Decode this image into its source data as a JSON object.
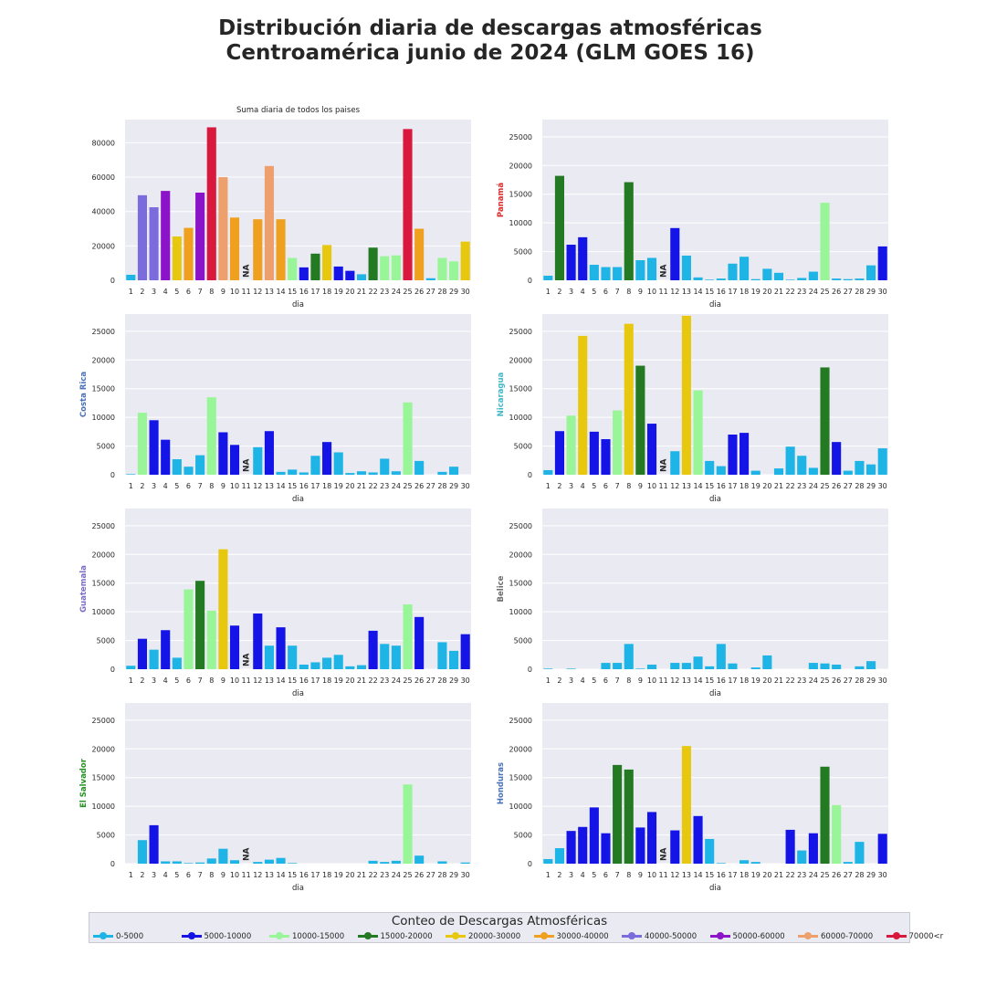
{
  "title_lines": [
    "Distribución diaria de descargas atmosféricas",
    "Centroamérica junio de 2024 (GLM GOES 16)"
  ],
  "legend": {
    "title": "Conteo de Descargas Atmosféricas",
    "items": [
      {
        "label": "0-5000",
        "color": "#1fb4e6"
      },
      {
        "label": "5000-10000",
        "color": "#1414e6"
      },
      {
        "label": "10000-15000",
        "color": "#98f598"
      },
      {
        "label": "15000-20000",
        "color": "#237a23"
      },
      {
        "label": "20000-30000",
        "color": "#e8c80f"
      },
      {
        "label": "30000-40000",
        "color": "#eea01e"
      },
      {
        "label": "40000-50000",
        "color": "#7b6cde"
      },
      {
        "label": "50000-60000",
        "color": "#8c14c8"
      },
      {
        "label": "60000-70000",
        "color": "#eea06c"
      },
      {
        "label": "70000<r",
        "color": "#d8183c"
      }
    ]
  },
  "chart_data": [
    {
      "type": "bar",
      "title": "Suma diaria de todos los paises",
      "ylabel": "",
      "ylabel_color": "#262626",
      "xlabel": "dia",
      "categories": [
        "1",
        "2",
        "3",
        "4",
        "5",
        "6",
        "7",
        "8",
        "9",
        "10",
        "11",
        "12",
        "13",
        "14",
        "15",
        "16",
        "17",
        "18",
        "19",
        "20",
        "21",
        "22",
        "23",
        "24",
        "25",
        "26",
        "27",
        "28",
        "29",
        "30"
      ],
      "values": [
        3200,
        49500,
        42500,
        52000,
        25500,
        30500,
        51000,
        89000,
        60000,
        36500,
        null,
        35500,
        66500,
        35500,
        13000,
        7500,
        15500,
        20500,
        8000,
        5500,
        3500,
        19000,
        14000,
        14500,
        88000,
        30000,
        1200,
        13000,
        11000,
        22500
      ],
      "na_label": "NA",
      "ylim": [
        0,
        93500
      ],
      "yticks": [
        0,
        20000,
        40000,
        60000,
        80000
      ]
    },
    {
      "type": "bar",
      "title": "",
      "ylabel": "Panamá",
      "ylabel_color": "#e02828",
      "xlabel": "dia",
      "categories": [
        "1",
        "2",
        "3",
        "4",
        "5",
        "6",
        "7",
        "8",
        "9",
        "10",
        "11",
        "12",
        "13",
        "14",
        "15",
        "16",
        "17",
        "18",
        "19",
        "20",
        "21",
        "22",
        "23",
        "24",
        "25",
        "26",
        "27",
        "28",
        "29",
        "30"
      ],
      "values": [
        800,
        18200,
        6200,
        7500,
        2700,
        2300,
        2300,
        17100,
        3500,
        3900,
        null,
        9100,
        4300,
        500,
        100,
        300,
        2900,
        4100,
        200,
        2000,
        1300,
        100,
        400,
        1500,
        13500,
        300,
        200,
        300,
        2600,
        5900
      ],
      "na_label": "NA",
      "ylim": [
        0,
        28000
      ],
      "yticks": [
        0,
        5000,
        10000,
        15000,
        20000,
        25000
      ]
    },
    {
      "type": "bar",
      "title": "",
      "ylabel": "Costa Rica",
      "ylabel_color": "#4a70b8",
      "xlabel": "dia",
      "categories": [
        "1",
        "2",
        "3",
        "4",
        "5",
        "6",
        "7",
        "8",
        "9",
        "10",
        "11",
        "12",
        "13",
        "14",
        "15",
        "16",
        "17",
        "18",
        "19",
        "20",
        "21",
        "22",
        "23",
        "24",
        "25",
        "26",
        "27",
        "28",
        "29",
        "30"
      ],
      "values": [
        100,
        10800,
        9500,
        6100,
        2700,
        1400,
        3400,
        13500,
        7400,
        5200,
        null,
        4800,
        7600,
        500,
        900,
        400,
        3300,
        5700,
        3900,
        300,
        600,
        400,
        2800,
        600,
        12600,
        2400,
        0,
        500,
        1400,
        0
      ],
      "na_label": "NA",
      "ylim": [
        0,
        28000
      ],
      "yticks": [
        0,
        5000,
        10000,
        15000,
        20000,
        25000
      ]
    },
    {
      "type": "bar",
      "title": "",
      "ylabel": "Nicaragua",
      "ylabel_color": "#3fb8c8",
      "xlabel": "dia",
      "categories": [
        "1",
        "2",
        "3",
        "4",
        "5",
        "6",
        "7",
        "8",
        "9",
        "10",
        "11",
        "12",
        "13",
        "14",
        "15",
        "16",
        "17",
        "18",
        "19",
        "20",
        "21",
        "22",
        "23",
        "24",
        "25",
        "26",
        "27",
        "28",
        "29",
        "30"
      ],
      "values": [
        800,
        7600,
        10300,
        24200,
        7500,
        6200,
        11200,
        26300,
        19000,
        8900,
        null,
        4100,
        27700,
        14700,
        2400,
        1500,
        7000,
        7300,
        700,
        0,
        1100,
        4900,
        3300,
        1200,
        18700,
        5700,
        700,
        2400,
        1800,
        4600
      ],
      "na_label": "NA",
      "ylim": [
        0,
        28000
      ],
      "yticks": [
        0,
        5000,
        10000,
        15000,
        20000,
        25000
      ]
    },
    {
      "type": "bar",
      "title": "",
      "ylabel": "Guatemala",
      "ylabel_color": "#7e6cc9",
      "xlabel": "dia",
      "categories": [
        "1",
        "2",
        "3",
        "4",
        "5",
        "6",
        "7",
        "8",
        "9",
        "10",
        "11",
        "12",
        "13",
        "14",
        "15",
        "16",
        "17",
        "18",
        "19",
        "20",
        "21",
        "22",
        "23",
        "24",
        "25",
        "26",
        "27",
        "28",
        "29",
        "30"
      ],
      "values": [
        600,
        5300,
        3400,
        6800,
        2000,
        13900,
        15400,
        10200,
        20900,
        7600,
        null,
        9700,
        4100,
        7300,
        4100,
        800,
        1200,
        2000,
        2500,
        500,
        700,
        6700,
        4400,
        4100,
        11300,
        9100,
        0,
        4700,
        3200,
        6100
      ],
      "na_label": "NA",
      "ylim": [
        0,
        28000
      ],
      "yticks": [
        0,
        5000,
        10000,
        15000,
        20000,
        25000
      ]
    },
    {
      "type": "bar",
      "title": "",
      "ylabel": "Belice",
      "ylabel_color": "#6c6c6c",
      "xlabel": "dia",
      "categories": [
        "1",
        "2",
        "3",
        "4",
        "5",
        "6",
        "7",
        "8",
        "9",
        "10",
        "11",
        "12",
        "13",
        "14",
        "15",
        "16",
        "17",
        "18",
        "19",
        "20",
        "21",
        "22",
        "23",
        "24",
        "25",
        "26",
        "27",
        "28",
        "29",
        "30"
      ],
      "values": [
        100,
        0,
        100,
        0,
        0,
        1100,
        1100,
        4400,
        100,
        800,
        null,
        1100,
        1100,
        2200,
        500,
        4400,
        1000,
        0,
        300,
        2400,
        0,
        0,
        0,
        1100,
        1000,
        800,
        0,
        500,
        1400,
        0
      ],
      "na_label": "",
      "ylim": [
        0,
        28000
      ],
      "yticks": [
        0,
        5000,
        10000,
        15000,
        20000,
        25000
      ]
    },
    {
      "type": "bar",
      "title": "",
      "ylabel": "El Salvador",
      "ylabel_color": "#249224",
      "xlabel": "dia",
      "categories": [
        "1",
        "2",
        "3",
        "4",
        "5",
        "6",
        "7",
        "8",
        "9",
        "10",
        "11",
        "12",
        "13",
        "14",
        "15",
        "16",
        "17",
        "18",
        "19",
        "20",
        "21",
        "22",
        "23",
        "24",
        "25",
        "26",
        "27",
        "28",
        "29",
        "30"
      ],
      "values": [
        0,
        4100,
        6700,
        400,
        400,
        100,
        200,
        900,
        2600,
        600,
        null,
        300,
        700,
        1000,
        100,
        0,
        0,
        0,
        0,
        0,
        0,
        500,
        300,
        500,
        13800,
        1400,
        0,
        400,
        0,
        200
      ],
      "na_label": "NA",
      "ylim": [
        0,
        28000
      ],
      "yticks": [
        0,
        5000,
        10000,
        15000,
        20000,
        25000
      ]
    },
    {
      "type": "bar",
      "title": "",
      "ylabel": "Honduras",
      "ylabel_color": "#4a70b8",
      "xlabel": "dia",
      "categories": [
        "1",
        "2",
        "3",
        "4",
        "5",
        "6",
        "7",
        "8",
        "9",
        "10",
        "11",
        "12",
        "13",
        "14",
        "15",
        "16",
        "17",
        "18",
        "19",
        "20",
        "21",
        "22",
        "23",
        "24",
        "25",
        "26",
        "27",
        "28",
        "29",
        "30"
      ],
      "values": [
        800,
        2700,
        5700,
        6400,
        9800,
        5300,
        17200,
        16400,
        6300,
        9000,
        null,
        5800,
        20500,
        8300,
        4300,
        100,
        0,
        600,
        300,
        0,
        0,
        5900,
        2300,
        5300,
        16900,
        10200,
        300,
        3800,
        0,
        5200
      ],
      "na_label": "NA",
      "ylim": [
        0,
        28000
      ],
      "yticks": [
        0,
        5000,
        10000,
        15000,
        20000,
        25000
      ]
    }
  ]
}
